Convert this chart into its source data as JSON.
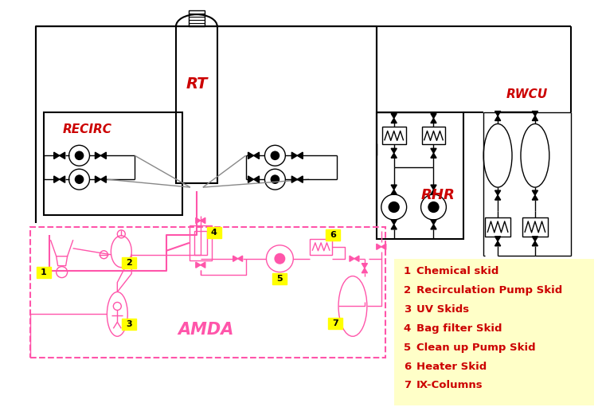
{
  "bg_color": "#ffffff",
  "black": "#000000",
  "red": "#cc0000",
  "dark_red": "#cc0000",
  "legend_bg": "#ffffc8",
  "pink": "#ff66aa",
  "legend_items": [
    {
      "num": "1",
      "text": "Chemical skid"
    },
    {
      "num": "2",
      "text": "Recirculation Pump Skid"
    },
    {
      "num": "3",
      "text": "UV Skids"
    },
    {
      "num": "4",
      "text": "Bag filter Skid"
    },
    {
      "num": "5",
      "text": "Clean up Pump Skid"
    },
    {
      "num": "6",
      "text": "Heater Skid"
    },
    {
      "num": "7",
      "text": "IX-Columns"
    }
  ],
  "label_RT": "RT",
  "label_RECIRC": "RECIRC",
  "label_AMDA": "AMDA",
  "label_RHR": "RHR",
  "label_RWCU": "RWCU"
}
